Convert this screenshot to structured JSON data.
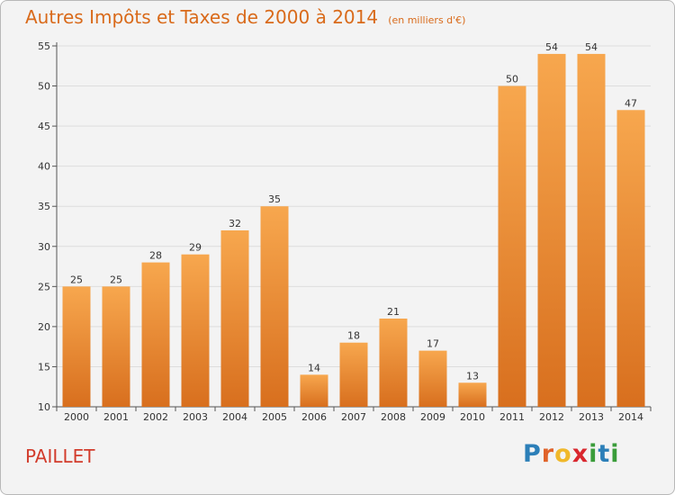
{
  "title": "Autres Impôts et Taxes de 2000 à 2014",
  "subtitle": "(en milliers d'€)",
  "commune": "PAILLET",
  "logo": {
    "letters": [
      "P",
      "r",
      "o",
      "x",
      "i",
      "t",
      "i"
    ],
    "colors": [
      "#2c7fb8",
      "#e0632a",
      "#f0b82a",
      "#d9272e",
      "#3a9c3a",
      "#2c7fb8",
      "#3a9c3a"
    ]
  },
  "colors": {
    "title": "#d96a1a",
    "bar_top": "#f7a74e",
    "bar_bottom": "#d86f1e",
    "commune": "#d23c2c"
  },
  "chart_data": {
    "type": "bar",
    "title": "Autres Impôts et Taxes de 2000 à 2014",
    "subtitle": "(en milliers d'€)",
    "categories": [
      "2000",
      "2001",
      "2002",
      "2003",
      "2004",
      "2005",
      "2006",
      "2007",
      "2008",
      "2009",
      "2010",
      "2011",
      "2012",
      "2013",
      "2014"
    ],
    "values": [
      25,
      25,
      28,
      29,
      32,
      35,
      14,
      18,
      21,
      17,
      13,
      50,
      54,
      54,
      47
    ],
    "ylim": [
      10,
      55
    ],
    "yticks": [
      10,
      15,
      20,
      25,
      30,
      35,
      40,
      45,
      50,
      55
    ],
    "grid": true,
    "data_labels": true
  }
}
